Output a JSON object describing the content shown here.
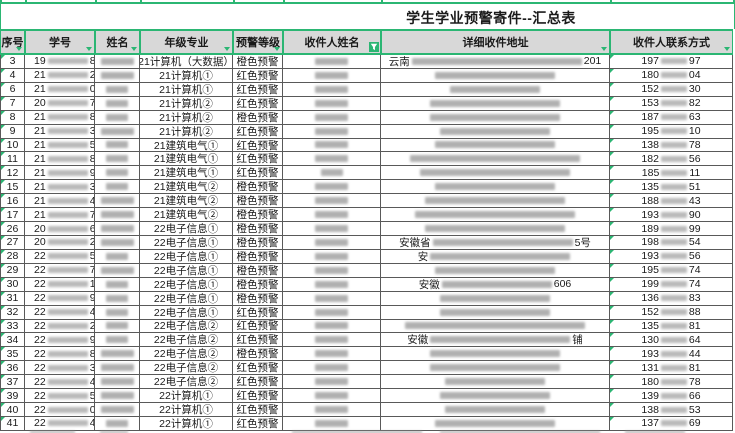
{
  "title": "学生学业预警寄件--汇总表",
  "accent_color": "#2bb673",
  "header": {
    "columns": [
      {
        "label": "序号",
        "filtered": false
      },
      {
        "label": "学号",
        "filtered": false
      },
      {
        "label": "姓名",
        "filtered": false
      },
      {
        "label": "年级专业",
        "filtered": false
      },
      {
        "label": "预警等级",
        "filtered": false
      },
      {
        "label": "收件人姓名",
        "filtered": true
      },
      {
        "label": "详细收件地址",
        "filtered": false
      },
      {
        "label": "收件人联系方式",
        "filtered": false
      }
    ],
    "filter_icon": "funnel-icon",
    "dropdown_icon": "filter-dropdown-arrow"
  },
  "warning_levels": {
    "orange": "橙色预警",
    "red": "红色预警"
  },
  "rows": [
    {
      "seq": "3",
      "id_pre": "19",
      "id_suf": "8",
      "name_len": 3,
      "major": "21计算机（大数据）",
      "level": "橙色预警",
      "recip_len": 3,
      "addr_pre": "云南",
      "addr_suf": "201",
      "addr_len": 17,
      "phone_pre": "197",
      "phone_suf": "97"
    },
    {
      "seq": "4",
      "id_pre": "21",
      "id_suf": "2",
      "name_len": 3,
      "major": "21计算机①",
      "level": "红色预警",
      "recip_len": 3,
      "addr_pre": "",
      "addr_suf": "",
      "addr_len": 12,
      "phone_pre": "180",
      "phone_suf": "04"
    },
    {
      "seq": "6",
      "id_pre": "21",
      "id_suf": "0",
      "name_len": 2,
      "major": "21计算机①",
      "level": "红色预警",
      "recip_len": 3,
      "addr_pre": "",
      "addr_suf": "",
      "addr_len": 9,
      "phone_pre": "152",
      "phone_suf": "30"
    },
    {
      "seq": "7",
      "id_pre": "20",
      "id_suf": "7",
      "name_len": 2,
      "major": "21计算机②",
      "level": "红色预警",
      "recip_len": 3,
      "addr_pre": "",
      "addr_suf": "",
      "addr_len": 13,
      "phone_pre": "153",
      "phone_suf": "82"
    },
    {
      "seq": "8",
      "id_pre": "21",
      "id_suf": "8",
      "name_len": 2,
      "major": "21计算机②",
      "level": "橙色预警",
      "recip_len": 3,
      "addr_pre": "",
      "addr_suf": "",
      "addr_len": 13,
      "phone_pre": "187",
      "phone_suf": "63"
    },
    {
      "seq": "9",
      "id_pre": "21",
      "id_suf": "3",
      "name_len": 3,
      "major": "21计算机②",
      "level": "红色预警",
      "recip_len": 3,
      "addr_pre": "",
      "addr_suf": "",
      "addr_len": 11,
      "phone_pre": "195",
      "phone_suf": "10"
    },
    {
      "seq": "10",
      "id_pre": "21",
      "id_suf": "5",
      "name_len": 2,
      "major": "21建筑电气①",
      "level": "红色预警",
      "recip_len": 3,
      "addr_pre": "",
      "addr_suf": "",
      "addr_len": 12,
      "phone_pre": "138",
      "phone_suf": "78"
    },
    {
      "seq": "11",
      "id_pre": "21",
      "id_suf": "8",
      "name_len": 2,
      "major": "21建筑电气①",
      "level": "红色预警",
      "recip_len": 3,
      "addr_pre": "",
      "addr_suf": "",
      "addr_len": 17,
      "phone_pre": "182",
      "phone_suf": "56"
    },
    {
      "seq": "12",
      "id_pre": "21",
      "id_suf": "9",
      "name_len": 2,
      "major": "21建筑电气①",
      "level": "红色预警",
      "recip_len": 2,
      "addr_pre": "",
      "addr_suf": "",
      "addr_len": 15,
      "phone_pre": "185",
      "phone_suf": "11"
    },
    {
      "seq": "15",
      "id_pre": "21",
      "id_suf": "3",
      "name_len": 2,
      "major": "21建筑电气②",
      "level": "橙色预警",
      "recip_len": 3,
      "addr_pre": "",
      "addr_suf": "",
      "addr_len": 12,
      "phone_pre": "135",
      "phone_suf": "51"
    },
    {
      "seq": "16",
      "id_pre": "21",
      "id_suf": "4",
      "name_len": 3,
      "major": "21建筑电气②",
      "level": "橙色预警",
      "recip_len": 3,
      "addr_pre": "",
      "addr_suf": "",
      "addr_len": 14,
      "phone_pre": "188",
      "phone_suf": "43"
    },
    {
      "seq": "17",
      "id_pre": "21",
      "id_suf": "7",
      "name_len": 3,
      "major": "21建筑电气②",
      "level": "橙色预警",
      "recip_len": 3,
      "addr_pre": "",
      "addr_suf": "",
      "addr_len": 16,
      "phone_pre": "193",
      "phone_suf": "90"
    },
    {
      "seq": "26",
      "id_pre": "20",
      "id_suf": "6",
      "name_len": 3,
      "major": "22电子信息①",
      "level": "橙色预警",
      "recip_len": 3,
      "addr_pre": "",
      "addr_suf": "",
      "addr_len": 14,
      "phone_pre": "189",
      "phone_suf": "99"
    },
    {
      "seq": "27",
      "id_pre": "20",
      "id_suf": "2",
      "name_len": 3,
      "major": "22电子信息①",
      "level": "橙色预警",
      "recip_len": 3,
      "addr_pre": "安徽省",
      "addr_suf": "5号",
      "addr_len": 14,
      "phone_pre": "198",
      "phone_suf": "54"
    },
    {
      "seq": "28",
      "id_pre": "22",
      "id_suf": "5",
      "name_len": 2,
      "major": "22电子信息①",
      "level": "橙色预警",
      "recip_len": 3,
      "addr_pre": "安",
      "addr_suf": "",
      "addr_len": 14,
      "phone_pre": "193",
      "phone_suf": "56"
    },
    {
      "seq": "29",
      "id_pre": "22",
      "id_suf": "7",
      "name_len": 3,
      "major": "22电子信息①",
      "level": "橙色预警",
      "recip_len": 3,
      "addr_pre": "",
      "addr_suf": "",
      "addr_len": 12,
      "phone_pre": "195",
      "phone_suf": "74"
    },
    {
      "seq": "30",
      "id_pre": "22",
      "id_suf": "1",
      "name_len": 2,
      "major": "22电子信息①",
      "level": "橙色预警",
      "recip_len": 3,
      "addr_pre": "安徽",
      "addr_suf": "606",
      "addr_len": 11,
      "phone_pre": "199",
      "phone_suf": "74"
    },
    {
      "seq": "31",
      "id_pre": "22",
      "id_suf": "9",
      "name_len": 2,
      "major": "22电子信息①",
      "level": "橙色预警",
      "recip_len": 3,
      "addr_pre": "",
      "addr_suf": "",
      "addr_len": 11,
      "phone_pre": "136",
      "phone_suf": "83"
    },
    {
      "seq": "32",
      "id_pre": "22",
      "id_suf": "4",
      "name_len": 2,
      "major": "22电子信息①",
      "level": "红色预警",
      "recip_len": 3,
      "addr_pre": "",
      "addr_suf": "",
      "addr_len": 11,
      "phone_pre": "152",
      "phone_suf": "88"
    },
    {
      "seq": "33",
      "id_pre": "22",
      "id_suf": "2",
      "name_len": 2,
      "major": "22电子信息②",
      "level": "红色预警",
      "recip_len": 3,
      "addr_pre": "",
      "addr_suf": "",
      "addr_len": 18,
      "phone_pre": "135",
      "phone_suf": "81"
    },
    {
      "seq": "34",
      "id_pre": "22",
      "id_suf": "9",
      "name_len": 2,
      "major": "22电子信息②",
      "level": "红色预警",
      "recip_len": 3,
      "addr_pre": "安徽",
      "addr_suf": "铺",
      "addr_len": 14,
      "phone_pre": "130",
      "phone_suf": "64"
    },
    {
      "seq": "35",
      "id_pre": "22",
      "id_suf": "8",
      "name_len": 3,
      "major": "22电子信息②",
      "level": "橙色预警",
      "recip_len": 3,
      "addr_pre": "",
      "addr_suf": "",
      "addr_len": 13,
      "phone_pre": "193",
      "phone_suf": "44"
    },
    {
      "seq": "36",
      "id_pre": "22",
      "id_suf": "3",
      "name_len": 3,
      "major": "22电子信息②",
      "level": "红色预警",
      "recip_len": 3,
      "addr_pre": "",
      "addr_suf": "",
      "addr_len": 13,
      "phone_pre": "131",
      "phone_suf": "81"
    },
    {
      "seq": "37",
      "id_pre": "22",
      "id_suf": "4",
      "name_len": 3,
      "major": "22电子信息②",
      "level": "红色预警",
      "recip_len": 3,
      "addr_pre": "",
      "addr_suf": "",
      "addr_len": 10,
      "phone_pre": "180",
      "phone_suf": "78"
    },
    {
      "seq": "39",
      "id_pre": "22",
      "id_suf": "5",
      "name_len": 3,
      "major": "22计算机①",
      "level": "红色预警",
      "recip_len": 3,
      "addr_pre": "",
      "addr_suf": "",
      "addr_len": 11,
      "phone_pre": "139",
      "phone_suf": "66"
    },
    {
      "seq": "40",
      "id_pre": "22",
      "id_suf": "0",
      "name_len": 3,
      "major": "22计算机①",
      "level": "红色预警",
      "recip_len": 3,
      "addr_pre": "",
      "addr_suf": "",
      "addr_len": 10,
      "phone_pre": "138",
      "phone_suf": "53"
    },
    {
      "seq": "41",
      "id_pre": "22",
      "id_suf": "4",
      "name_len": 2,
      "major": "22计算机①",
      "level": "红色预警",
      "recip_len": 3,
      "addr_pre": "",
      "addr_suf": "",
      "addr_len": 12,
      "phone_pre": "137",
      "phone_suf": "69"
    }
  ]
}
